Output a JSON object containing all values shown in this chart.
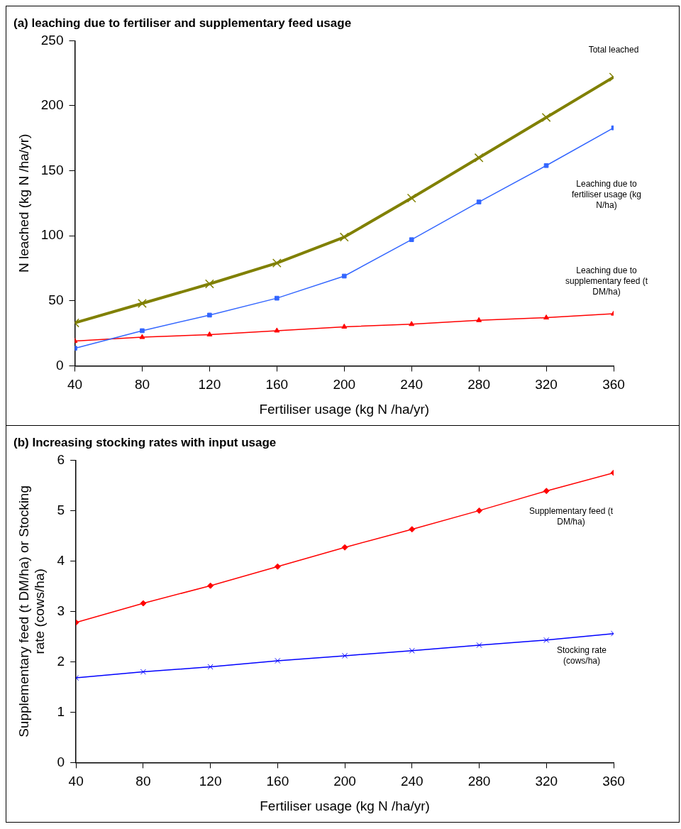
{
  "chart_data": [
    {
      "type": "line",
      "title": "(a) leaching due to fertiliser and supplementary feed usage",
      "xlabel": "Fertiliser usage (kg N /ha/yr)",
      "ylabel": "N leached (kg N /ha/yr)",
      "x": [
        40,
        80,
        120,
        160,
        200,
        240,
        280,
        320,
        360
      ],
      "series": [
        {
          "name": "Total leached",
          "color": "#808000",
          "marker": "cross",
          "values": [
            33,
            48,
            63,
            79,
            99,
            129,
            160,
            191,
            222
          ]
        },
        {
          "name": "Leaching due to fertiliser usage (kg N/ha)",
          "color": "#3366ff",
          "marker": "square",
          "values": [
            13.5,
            27,
            39,
            52,
            69,
            97,
            126,
            154,
            183
          ]
        },
        {
          "name": "Leaching due to supplementary feed (t DM/ha)",
          "color": "#ff0000",
          "marker": "triangle",
          "values": [
            19,
            22,
            24,
            27,
            30,
            32,
            35,
            37,
            40
          ]
        }
      ],
      "xlim": [
        40,
        360
      ],
      "xticks": [
        40,
        80,
        120,
        160,
        200,
        240,
        280,
        320,
        360
      ],
      "ylim": [
        0,
        250
      ],
      "yticks": [
        0,
        50,
        100,
        150,
        200,
        250
      ],
      "legend": false
    },
    {
      "type": "line",
      "title": "(b) Increasing stocking rates with input usage",
      "xlabel": "Fertiliser usage (kg N /ha/yr)",
      "ylabel": "Supplementary feed (t DM/ha) or Stocking rate (cows/ha)",
      "x": [
        40,
        80,
        120,
        160,
        200,
        240,
        280,
        320,
        360
      ],
      "series": [
        {
          "name": "Supplementary feed (t DM/ha)",
          "color": "#ff0000",
          "marker": "diamond",
          "values": [
            2.78,
            3.16,
            3.51,
            3.89,
            4.27,
            4.63,
            5.0,
            5.39,
            5.75
          ]
        },
        {
          "name": "Stocking rate (cows/ha)",
          "color": "#0000ff",
          "marker": "cross",
          "values": [
            1.68,
            1.8,
            1.9,
            2.02,
            2.12,
            2.22,
            2.33,
            2.43,
            2.56
          ]
        }
      ],
      "xlim": [
        40,
        360
      ],
      "xticks": [
        40,
        80,
        120,
        160,
        200,
        240,
        280,
        320,
        360
      ],
      "ylim": [
        0,
        6
      ],
      "yticks": [
        0,
        1,
        2,
        3,
        4,
        5,
        6
      ],
      "legend": false
    }
  ]
}
